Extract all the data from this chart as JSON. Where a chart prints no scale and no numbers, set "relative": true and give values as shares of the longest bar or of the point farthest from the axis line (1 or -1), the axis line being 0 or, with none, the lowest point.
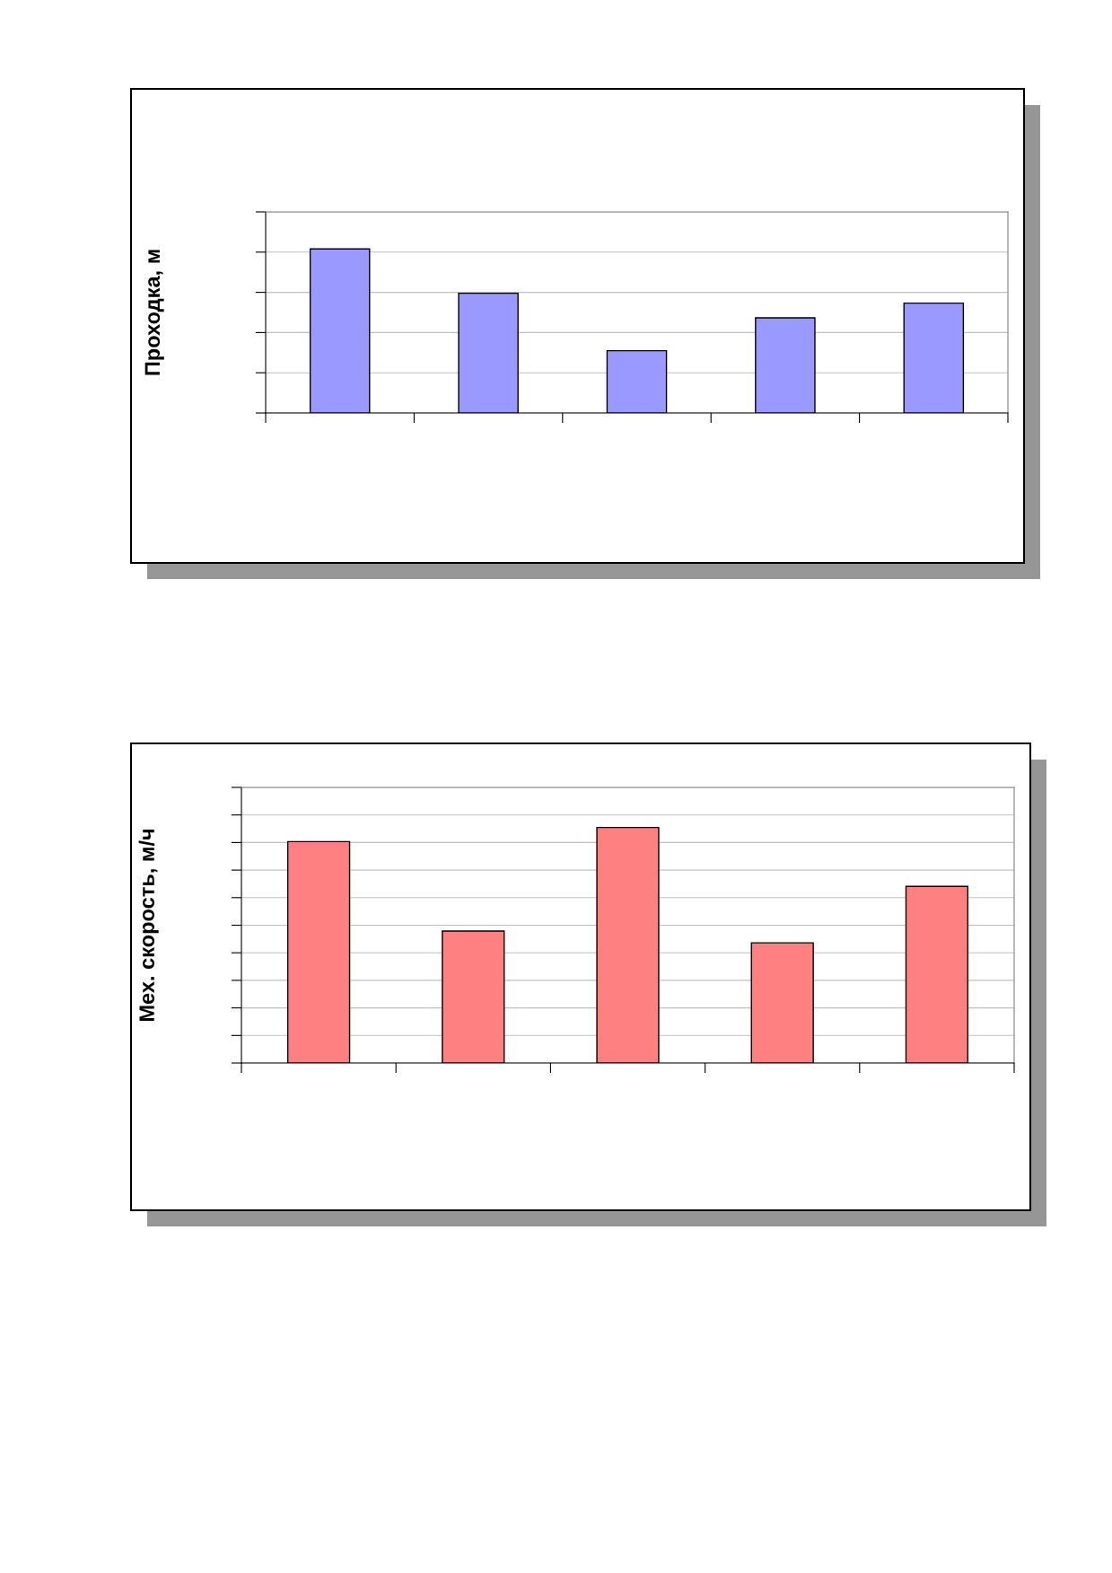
{
  "chart_data": [
    {
      "type": "bar",
      "ylabel": "Проходка, м",
      "categories": [
        null,
        null,
        null,
        null,
        null
      ],
      "values": [
        1,
        0.73,
        0.38,
        0.58,
        0.67
      ],
      "color": "#9999ff",
      "relative": true,
      "grid": "y",
      "tick_labels": false
    },
    {
      "type": "bar",
      "ylabel": "Мех. скорость, м/ч",
      "categories": [
        null,
        null,
        null,
        null,
        null
      ],
      "values": [
        0.94,
        0.56,
        1,
        0.51,
        0.75
      ],
      "color": "#ff8080",
      "relative": true,
      "grid": "y",
      "tick_labels": false
    }
  ]
}
